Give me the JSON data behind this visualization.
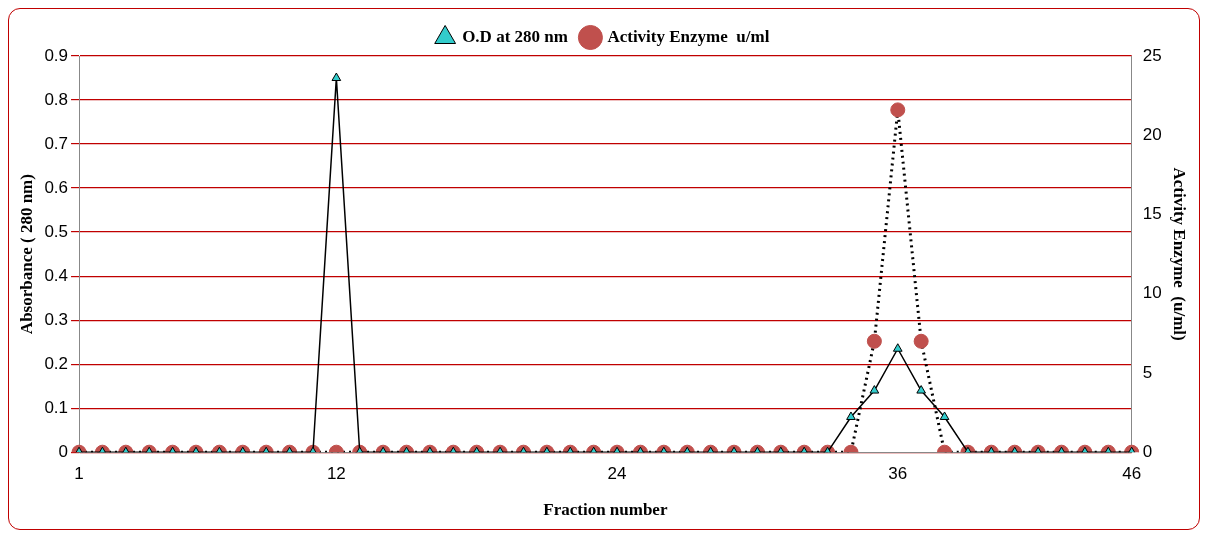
{
  "chart_data": {
    "type": "line",
    "xlabel": "Fraction number",
    "ylabel": "Absorbance ( 280 nm)",
    "y2label": "Activity Enzyme  (u/ml)",
    "categories": [
      "1",
      null,
      null,
      null,
      null,
      null,
      null,
      null,
      null,
      null,
      null,
      "12",
      null,
      null,
      null,
      null,
      null,
      null,
      null,
      null,
      null,
      null,
      null,
      "24",
      null,
      null,
      null,
      null,
      null,
      null,
      null,
      null,
      null,
      null,
      null,
      "36",
      null,
      null,
      null,
      null,
      null,
      null,
      null,
      null,
      null,
      "46"
    ],
    "series": [
      {
        "name": "O.D at 280 nm",
        "color": "#33cccc",
        "marker": "triangle",
        "line_style": "solid",
        "values": [
          0,
          0,
          0,
          0,
          0,
          0,
          0,
          0,
          0,
          0,
          0,
          0.85,
          0,
          0,
          0,
          0,
          0,
          0,
          0,
          0,
          0,
          0,
          0,
          0,
          0,
          0,
          0,
          0,
          0,
          0,
          0,
          0,
          0,
          0.08,
          0.14,
          0.235,
          0.14,
          0.08,
          0,
          0,
          0,
          0,
          0,
          0,
          0,
          0
        ]
      },
      {
        "name": "Activity Enzyme  u/ml",
        "color": "#c0504d",
        "marker": "circle",
        "line_style": "dotted",
        "axis": "y2",
        "values": [
          0,
          0,
          0,
          0,
          0,
          0,
          0,
          0,
          0,
          0,
          0,
          0,
          0,
          0,
          0,
          0,
          0,
          0,
          0,
          0,
          0,
          0,
          0,
          0,
          0,
          0,
          0,
          0,
          0,
          0,
          0,
          0,
          0,
          0,
          7,
          21.6,
          7,
          0,
          0,
          0,
          0,
          0,
          0,
          0,
          0,
          0
        ]
      }
    ],
    "ylim": [
      0,
      0.9
    ],
    "yticks": [
      0,
      0.1,
      0.2,
      0.3,
      0.4,
      0.5,
      0.6,
      0.7,
      0.8,
      0.9
    ],
    "y2lim": [
      0,
      25
    ],
    "y2ticks": [
      0,
      5,
      10,
      15,
      20,
      25
    ],
    "grid": "y",
    "legend": "top"
  }
}
